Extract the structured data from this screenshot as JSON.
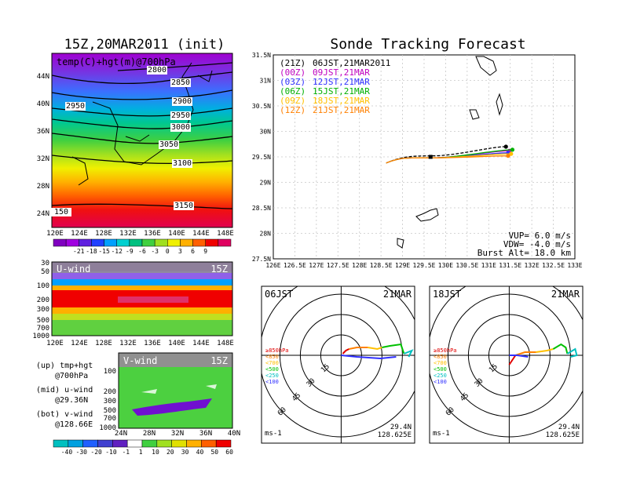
{
  "main_title": "15Z,20MAR2011 (init)",
  "right_title": "Sonde Tracking Forecast",
  "map_panel": {
    "label": "temp(C)+hgt(m)@700hPa",
    "lat_ticks": [
      "44N",
      "40N",
      "36N",
      "32N",
      "28N",
      "24N"
    ],
    "lon_ticks": [
      "120E",
      "124E",
      "128E",
      "132E",
      "136E",
      "140E",
      "144E",
      "148E"
    ],
    "contour_labels": [
      "2800",
      "2850",
      "2900",
      "2950",
      "2950",
      "3000",
      "3050",
      "3100",
      "3150",
      "150"
    ],
    "colorbar_ticks": [
      "-21",
      "-18",
      "-15",
      "-12",
      "-9",
      "-6",
      "-3",
      "0",
      "3",
      "6",
      "9"
    ],
    "colorbar_colors": [
      "#8000c0",
      "#a000e0",
      "#6020e0",
      "#2040ff",
      "#00a0ff",
      "#00d0d0",
      "#00c080",
      "#40d040",
      "#a0e020",
      "#f0f000",
      "#ffb000",
      "#ff6000",
      "#f00000",
      "#e00060"
    ]
  },
  "uwind_panel": {
    "label": "U-wind",
    "time": "15Z",
    "p_ticks": [
      "30",
      "50",
      "100",
      "200",
      "300",
      "500",
      "700",
      "1000"
    ],
    "lon_ticks": [
      "120E",
      "124E",
      "128E",
      "132E",
      "136E",
      "140E",
      "144E",
      "148E"
    ]
  },
  "vwind_panel": {
    "label": "V-wind",
    "time": "15Z",
    "p_ticks": [
      "100",
      "200",
      "300",
      "500",
      "700",
      "1000"
    ],
    "lat_ticks": [
      "24N",
      "28N",
      "32N",
      "36N",
      "40N"
    ]
  },
  "side_notes": [
    {
      "a": "(up) tmp+hgt",
      "b": "@700hPa"
    },
    {
      "a": "(mid) u-wind",
      "b": "@29.36N"
    },
    {
      "a": "(bot) v-wind",
      "b": "@128.66E"
    }
  ],
  "wind_colorbar_ticks": [
    "-40",
    "-30",
    "-20",
    "-10",
    "-1",
    "1",
    "10",
    "20",
    "30",
    "40",
    "50",
    "60"
  ],
  "wind_colorbar_colors": [
    "#00c0c0",
    "#00a0e0",
    "#2060ff",
    "#4040d0",
    "#6020c0",
    "#ffffff",
    "#40d040",
    "#a0e020",
    "#e0e000",
    "#ffb000",
    "#ff6000",
    "#f00000"
  ],
  "track_panel": {
    "lat_ticks": [
      "31.5N",
      "31N",
      "30.5N",
      "30N",
      "29.5N",
      "29N",
      "28.5N",
      "28N",
      "27.5N"
    ],
    "lon_ticks": [
      "126E",
      "126.5E",
      "127E",
      "127.5E",
      "128E",
      "128.5E",
      "129E",
      "129.5E",
      "130E",
      "130.5E",
      "131E",
      "131.5E",
      "132E",
      "132.5E",
      "133E"
    ],
    "legend": [
      {
        "init": "(21Z)",
        "label": "06JST,21MAR2011",
        "color": "#000000"
      },
      {
        "init": "(00Z)",
        "label": "09JST,21MAR",
        "color": "#c000c0"
      },
      {
        "init": "(03Z)",
        "label": "12JST,21MAR",
        "color": "#3030ff"
      },
      {
        "init": "(06Z)",
        "label": "15JST,21MAR",
        "color": "#00b000"
      },
      {
        "init": "(09Z)",
        "label": "18JST,21MAR",
        "color": "#ffc000"
      },
      {
        "init": "(12Z)",
        "label": "21JST,21MAR",
        "color": "#ff8000"
      }
    ],
    "info": [
      "VUP= 6.0 m/s",
      "VDW= -4.0 m/s",
      "Burst Alt= 18.0 km"
    ]
  },
  "hodographs": [
    {
      "time": "06JST",
      "date": "21MAR",
      "lat": "29.4N",
      "lon": "128.625E",
      "unit": "ms-1",
      "rings": [
        "15",
        "30",
        "45",
        "60"
      ]
    },
    {
      "time": "18JST",
      "date": "21MAR",
      "lat": "29.4N",
      "lon": "128.625E",
      "unit": "ms-1",
      "rings": [
        "15",
        "30",
        "45",
        "60"
      ]
    }
  ],
  "hodo_legend": [
    {
      "label": "≥850hPa",
      "color": "#e00000"
    },
    {
      "label": "<850",
      "color": "#ff8000"
    },
    {
      "label": "<700",
      "color": "#ffc000"
    },
    {
      "label": "<500",
      "color": "#00c000"
    },
    {
      "label": "<250",
      "color": "#00c0c0"
    },
    {
      "label": "<100",
      "color": "#3030ff"
    }
  ]
}
